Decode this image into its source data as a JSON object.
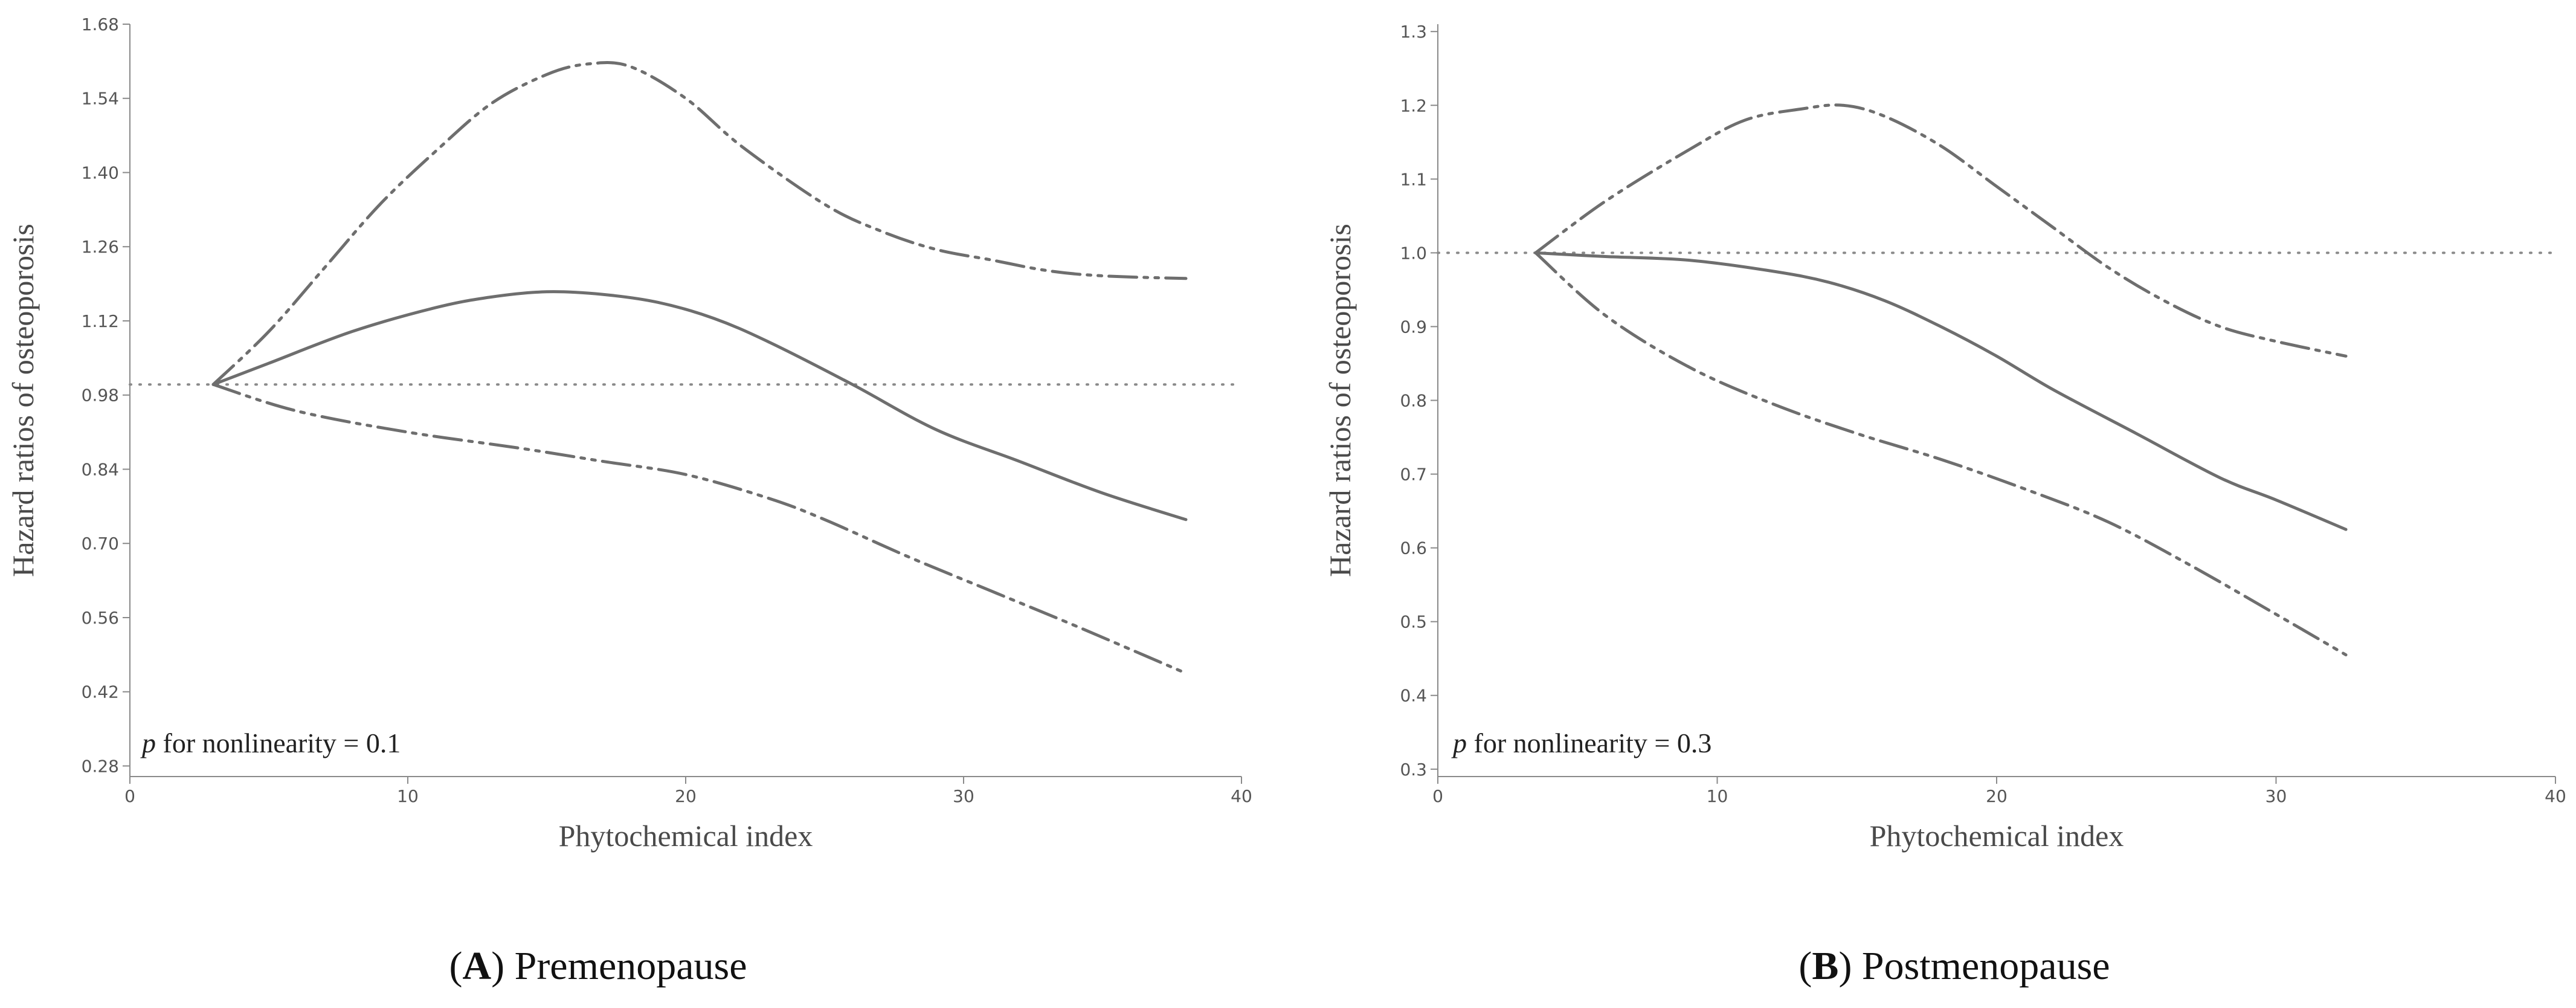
{
  "chart_data": [
    {
      "type": "line",
      "panel_letter": "A",
      "caption": "Premenopause",
      "xlabel": "Phytochemical index",
      "ylabel": "Hazard ratios of osteoporosis",
      "annotation": {
        "p": "p",
        "text": " for nonlinearity = 0.1"
      },
      "xlim": [
        0,
        40
      ],
      "ylim": [
        0.26,
        1.68
      ],
      "xticks": [
        0,
        10,
        20,
        30,
        40
      ],
      "yticks": [
        0.28,
        0.42,
        0.56,
        0.7,
        0.84,
        0.98,
        1.12,
        1.26,
        1.4,
        1.54,
        1.68
      ],
      "ytick_labels": [
        "0.28",
        "0.42",
        "0.56",
        "0.70",
        "0.84",
        "0.98",
        "1.12",
        "1.26",
        "1.40",
        "1.54",
        "1.68"
      ],
      "reference_y": 1.0,
      "series": [
        {
          "name": "Hazard ratio",
          "style": "solid",
          "x": [
            3,
            5,
            8,
            11,
            13,
            15,
            17,
            19,
            21,
            23,
            26,
            29,
            32,
            35,
            38
          ],
          "y": [
            1.0,
            1.04,
            1.1,
            1.145,
            1.165,
            1.175,
            1.17,
            1.155,
            1.125,
            1.08,
            1.0,
            0.915,
            0.855,
            0.795,
            0.745
          ]
        },
        {
          "name": "Upper 95% CI",
          "style": "dash-dot-dot",
          "x": [
            3,
            5,
            7,
            9,
            11,
            13,
            15,
            16.5,
            18,
            20,
            22,
            25,
            27,
            29,
            31,
            33,
            35,
            38
          ],
          "y": [
            1.0,
            1.1,
            1.22,
            1.34,
            1.44,
            1.53,
            1.585,
            1.605,
            1.6,
            1.54,
            1.45,
            1.34,
            1.29,
            1.255,
            1.235,
            1.215,
            1.205,
            1.2
          ]
        },
        {
          "name": "Lower 95% CI",
          "style": "dash-dot-dot",
          "x": [
            3,
            6,
            10,
            14,
            17,
            20,
            23,
            25,
            28,
            31,
            34,
            38
          ],
          "y": [
            1.0,
            0.95,
            0.91,
            0.88,
            0.855,
            0.83,
            0.785,
            0.745,
            0.675,
            0.61,
            0.545,
            0.455
          ]
        }
      ]
    },
    {
      "type": "line",
      "panel_letter": "B",
      "caption": "Postmenopause",
      "xlabel": "Phytochemical index",
      "ylabel": "Hazard ratios of osteoporosis",
      "annotation": {
        "p": "p",
        "text": " for nonlinearity = 0.3"
      },
      "xlim": [
        0,
        40
      ],
      "ylim": [
        0.29,
        1.31
      ],
      "xticks": [
        0,
        10,
        20,
        30,
        40
      ],
      "yticks": [
        0.3,
        0.4,
        0.5,
        0.6,
        0.7,
        0.8,
        0.9,
        1.0,
        1.1,
        1.2,
        1.3
      ],
      "ytick_labels": [
        "0.3",
        "0.4",
        "0.5",
        "0.6",
        "0.7",
        "0.8",
        "0.9",
        "1.0",
        "1.1",
        "1.2",
        "1.3"
      ],
      "reference_y": 1.0,
      "series": [
        {
          "name": "Hazard ratio",
          "style": "solid",
          "x": [
            3.5,
            6,
            9,
            12,
            14,
            16,
            18,
            20,
            22,
            25,
            28,
            30,
            32.5
          ],
          "y": [
            1.0,
            0.995,
            0.99,
            0.975,
            0.96,
            0.935,
            0.9,
            0.86,
            0.815,
            0.755,
            0.695,
            0.665,
            0.625
          ]
        },
        {
          "name": "Upper 95% CI",
          "style": "dash-dot-dot",
          "x": [
            3.5,
            6,
            9,
            11,
            13,
            14.5,
            16,
            18,
            20,
            22,
            24,
            26,
            28,
            30,
            32.5
          ],
          "y": [
            1.0,
            1.07,
            1.14,
            1.18,
            1.195,
            1.2,
            1.185,
            1.145,
            1.09,
            1.035,
            0.98,
            0.935,
            0.9,
            0.88,
            0.86
          ]
        },
        {
          "name": "Lower 95% CI",
          "style": "dash-dot-dot",
          "x": [
            3.5,
            6,
            9,
            12,
            15,
            18,
            21,
            24,
            27,
            30,
            32.5
          ],
          "y": [
            1.0,
            0.915,
            0.845,
            0.795,
            0.755,
            0.72,
            0.68,
            0.635,
            0.575,
            0.51,
            0.455
          ]
        }
      ]
    }
  ]
}
